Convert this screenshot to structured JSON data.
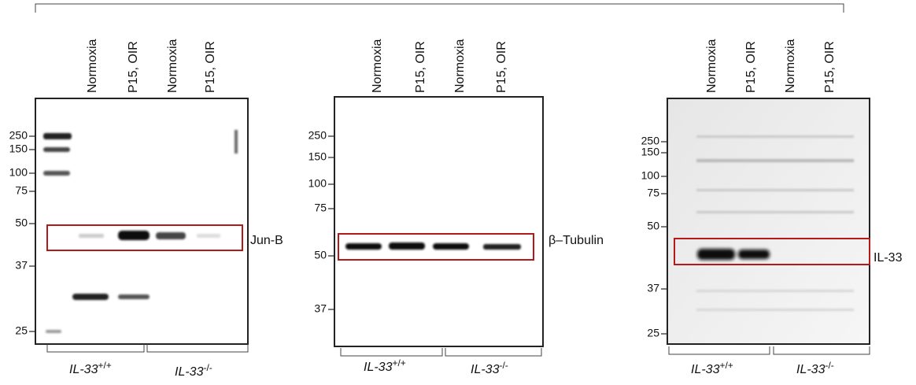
{
  "panels": [
    {
      "lanes": [
        "Normoxia",
        "P15, OIR",
        "Normoxia",
        "P15, OIR"
      ],
      "markers": [
        250,
        150,
        100,
        75,
        50,
        37,
        25
      ],
      "band_label": "Jun-B",
      "genotypes": [
        {
          "name": "IL-33",
          "sup": "+/+"
        },
        {
          "name": "IL-33",
          "sup": "-/-"
        }
      ]
    },
    {
      "lanes": [
        "Normoxia",
        "P15, OIR",
        "Normoxia",
        "P15, OIR"
      ],
      "markers": [
        250,
        150,
        100,
        75,
        50,
        37
      ],
      "band_label": "β–Tubulin",
      "genotypes": [
        {
          "name": "IL-33",
          "sup": "+/+"
        },
        {
          "name": "IL-33",
          "sup": "-/-"
        }
      ]
    },
    {
      "lanes": [
        "Normoxia",
        "P15, OIR",
        "Normoxia",
        "P15, OIR"
      ],
      "markers": [
        250,
        150,
        100,
        75,
        50,
        37,
        25
      ],
      "band_label": "IL-33",
      "genotypes": [
        {
          "name": "IL-33",
          "sup": "+/+"
        },
        {
          "name": "IL-33",
          "sup": "-/-"
        }
      ]
    }
  ]
}
